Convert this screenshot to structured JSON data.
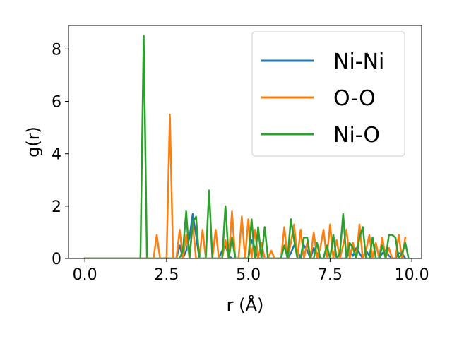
{
  "chart_data": {
    "type": "line",
    "xlabel": "r (Å)",
    "ylabel": "g(r)",
    "xlim": [
      -0.5,
      10.3
    ],
    "ylim": [
      0,
      8.9
    ],
    "xticks": [
      0.0,
      2.5,
      5.0,
      7.5,
      10.0
    ],
    "xtick_labels": [
      "0.0",
      "2.5",
      "5.0",
      "7.5",
      "10.0"
    ],
    "yticks": [
      0,
      2,
      4,
      6,
      8
    ],
    "ytick_labels": [
      "0",
      "2",
      "4",
      "6",
      "8"
    ],
    "grid": false,
    "legend_position": "top-right",
    "series": [
      {
        "name": "Ni-Ni",
        "color": "#1f77b4",
        "x": [
          0.0,
          2.8,
          2.9,
          3.0,
          3.1,
          3.2,
          3.3,
          3.4,
          3.5,
          4.1,
          4.2,
          4.3,
          4.4,
          4.5,
          5.0,
          5.1,
          5.2,
          5.3,
          5.4,
          6.2,
          6.3,
          6.4,
          6.5,
          6.6,
          6.7,
          6.8,
          6.9,
          7.0,
          7.1,
          7.2,
          8.0,
          8.1,
          8.2,
          8.3,
          8.4,
          8.5,
          8.6,
          8.7,
          8.8,
          9.0,
          9.1,
          9.2,
          9.3,
          9.4,
          9.5,
          9.6,
          9.7,
          9.8
        ],
        "y": [
          0.0,
          0.0,
          0.5,
          0.0,
          0.3,
          0.8,
          1.7,
          0.9,
          0.0,
          0.0,
          0.3,
          0.5,
          0.1,
          0.0,
          0.0,
          0.7,
          0.4,
          0.0,
          0.0,
          0.0,
          0.2,
          0.5,
          0.3,
          0.0,
          0.5,
          0.3,
          0.0,
          0.4,
          0.2,
          0.0,
          0.0,
          0.3,
          0.1,
          0.4,
          0.2,
          0.0,
          0.3,
          0.1,
          0.0,
          0.0,
          0.2,
          0.3,
          0.1,
          0.0,
          0.0,
          0.2,
          0.2,
          0.0
        ]
      },
      {
        "name": "O-O",
        "color": "#ff7f0e",
        "x": [
          0.0,
          2.1,
          2.2,
          2.3,
          2.4,
          2.5,
          2.6,
          2.7,
          2.8,
          2.9,
          3.0,
          3.1,
          3.2,
          3.3,
          3.4,
          3.5,
          3.6,
          3.7,
          3.8,
          3.9,
          4.0,
          4.1,
          4.2,
          4.3,
          4.4,
          4.5,
          4.6,
          4.7,
          4.8,
          4.9,
          5.0,
          5.1,
          5.2,
          5.3,
          5.4,
          5.5,
          5.6,
          5.7,
          5.8,
          5.9,
          6.0,
          6.1,
          6.2,
          6.3,
          6.4,
          6.5,
          6.6,
          6.7,
          6.8,
          6.9,
          7.0,
          7.1,
          7.2,
          7.3,
          7.4,
          7.5,
          7.6,
          7.7,
          7.8,
          7.9,
          8.0,
          8.1,
          8.2,
          8.3,
          8.4,
          8.5,
          8.6,
          8.7,
          8.8,
          8.9,
          9.0,
          9.1,
          9.2,
          9.3,
          9.4,
          9.5,
          9.6,
          9.7,
          9.8
        ],
        "y": [
          0.0,
          0.0,
          0.9,
          0.0,
          0.0,
          0.0,
          5.5,
          0.0,
          0.0,
          1.1,
          0.0,
          0.9,
          0.0,
          1.3,
          0.0,
          0.0,
          1.1,
          0.0,
          0.0,
          0.0,
          1.1,
          0.0,
          0.0,
          0.7,
          0.0,
          1.8,
          0.0,
          0.0,
          1.6,
          0.0,
          1.5,
          0.0,
          1.1,
          0.0,
          0.6,
          0.0,
          0.0,
          0.3,
          0.0,
          0.0,
          0.0,
          1.2,
          0.0,
          0.6,
          1.3,
          0.0,
          1.1,
          0.0,
          0.6,
          0.0,
          1.0,
          0.0,
          0.4,
          1.1,
          0.0,
          1.3,
          0.0,
          0.7,
          0.0,
          0.5,
          1.1,
          0.0,
          0.6,
          0.0,
          1.3,
          0.0,
          0.3,
          0.9,
          0.0,
          0.6,
          0.0,
          0.8,
          0.0,
          0.4,
          0.0,
          0.0,
          0.9,
          0.0,
          0.8
        ]
      },
      {
        "name": "Ni-O",
        "color": "#2ca02c",
        "x": [
          0.0,
          1.7,
          1.8,
          1.9,
          2.0,
          2.9,
          3.0,
          3.1,
          3.2,
          3.3,
          3.4,
          3.5,
          3.6,
          3.7,
          3.8,
          3.9,
          4.0,
          4.1,
          4.2,
          4.3,
          4.4,
          4.5,
          4.6,
          4.7,
          4.8,
          4.9,
          5.0,
          5.1,
          5.2,
          5.3,
          5.4,
          5.5,
          5.6,
          5.7,
          5.8,
          5.9,
          6.0,
          6.1,
          6.2,
          6.3,
          6.4,
          6.5,
          6.6,
          6.7,
          6.8,
          6.9,
          7.0,
          7.1,
          7.2,
          7.3,
          7.4,
          7.5,
          7.6,
          7.7,
          7.8,
          7.9,
          8.0,
          8.1,
          8.2,
          8.3,
          8.4,
          8.5,
          8.6,
          8.7,
          8.8,
          8.9,
          9.0,
          9.1,
          9.2,
          9.3,
          9.4,
          9.5,
          9.6,
          9.7,
          9.8,
          9.9
        ],
        "y": [
          0.0,
          0.0,
          8.5,
          0.0,
          0.0,
          0.0,
          0.3,
          1.8,
          0.0,
          1.4,
          1.6,
          0.0,
          0.0,
          0.0,
          2.6,
          0.0,
          0.0,
          0.0,
          0.0,
          2.0,
          0.0,
          0.8,
          0.0,
          0.0,
          0.0,
          0.0,
          0.0,
          1.5,
          0.0,
          1.2,
          0.0,
          1.2,
          0.0,
          0.0,
          0.0,
          0.0,
          0.0,
          0.5,
          0.0,
          1.5,
          0.7,
          0.0,
          0.0,
          0.8,
          0.8,
          0.0,
          0.0,
          0.6,
          0.0,
          0.0,
          0.5,
          0.0,
          0.9,
          0.0,
          0.2,
          1.7,
          0.0,
          0.6,
          0.4,
          0.0,
          0.8,
          1.2,
          0.0,
          0.0,
          0.8,
          0.0,
          0.0,
          0.5,
          0.0,
          0.9,
          0.9,
          0.8,
          0.0,
          0.2,
          0.6,
          0.0
        ]
      }
    ]
  }
}
